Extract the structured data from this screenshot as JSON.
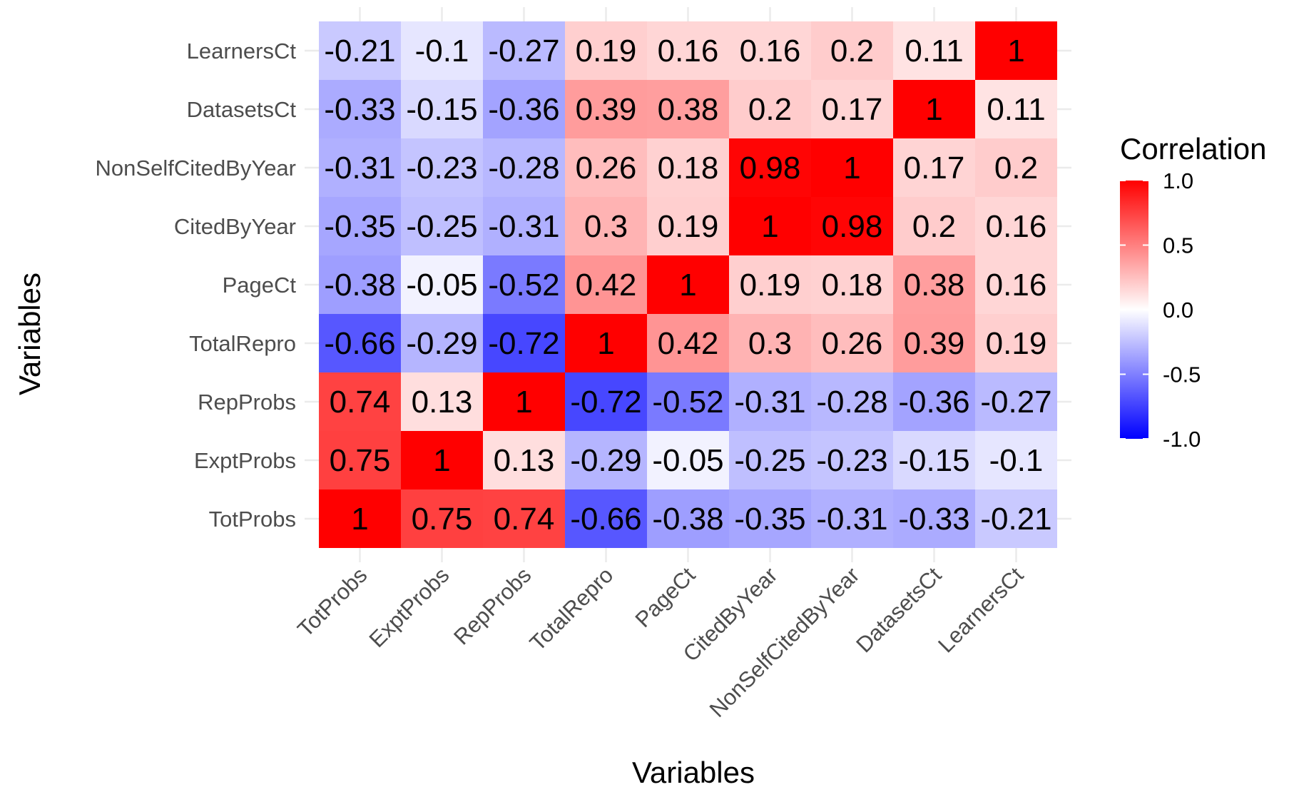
{
  "chart_data": {
    "type": "heatmap",
    "title": "",
    "xlabel": "Variables",
    "ylabel": "Variables",
    "x_categories": [
      "TotProbs",
      "ExptProbs",
      "RepProbs",
      "TotalRepro",
      "PageCt",
      "CitedByYear",
      "NonSelfCitedByYear",
      "DatasetsCt",
      "LearnersCt"
    ],
    "y_categories": [
      "TotProbs",
      "ExptProbs",
      "RepProbs",
      "TotalRepro",
      "PageCt",
      "CitedByYear",
      "NonSelfCitedByYear",
      "DatasetsCt",
      "LearnersCt"
    ],
    "values": [
      [
        1,
        0.75,
        0.74,
        -0.66,
        -0.38,
        -0.35,
        -0.31,
        -0.33,
        -0.21
      ],
      [
        0.75,
        1,
        0.13,
        -0.29,
        -0.05,
        -0.25,
        -0.23,
        -0.15,
        -0.1
      ],
      [
        0.74,
        0.13,
        1,
        -0.72,
        -0.52,
        -0.31,
        -0.28,
        -0.36,
        -0.27
      ],
      [
        -0.66,
        -0.29,
        -0.72,
        1,
        0.42,
        0.3,
        0.26,
        0.39,
        0.19
      ],
      [
        -0.38,
        -0.05,
        -0.52,
        0.42,
        1,
        0.19,
        0.18,
        0.38,
        0.16
      ],
      [
        -0.35,
        -0.25,
        -0.31,
        0.3,
        0.19,
        1,
        0.98,
        0.2,
        0.16
      ],
      [
        -0.31,
        -0.23,
        -0.28,
        0.26,
        0.18,
        0.98,
        1,
        0.17,
        0.2
      ],
      [
        -0.33,
        -0.15,
        -0.36,
        0.39,
        0.38,
        0.2,
        0.17,
        1,
        0.11
      ],
      [
        -0.21,
        -0.1,
        -0.27,
        0.19,
        0.16,
        0.16,
        0.2,
        0.11,
        1
      ]
    ],
    "cell_labels": [
      [
        "1",
        "0.75",
        "0.74",
        "-0.66",
        "-0.38",
        "-0.35",
        "-0.31",
        "-0.33",
        "-0.21"
      ],
      [
        "0.75",
        "1",
        "0.13",
        "-0.29",
        "-0.05",
        "-0.25",
        "-0.23",
        "-0.15",
        "-0.1"
      ],
      [
        "0.74",
        "0.13",
        "1",
        "-0.72",
        "-0.52",
        "-0.31",
        "-0.28",
        "-0.36",
        "-0.27"
      ],
      [
        "-0.66",
        "-0.29",
        "-0.72",
        "1",
        "0.42",
        "0.3",
        "0.26",
        "0.39",
        "0.19"
      ],
      [
        "-0.38",
        "-0.05",
        "-0.52",
        "0.42",
        "1",
        "0.19",
        "0.18",
        "0.38",
        "0.16"
      ],
      [
        "-0.35",
        "-0.25",
        "-0.31",
        "0.3",
        "0.19",
        "1",
        "0.98",
        "0.2",
        "0.16"
      ],
      [
        "-0.31",
        "-0.23",
        "-0.28",
        "0.26",
        "0.18",
        "0.98",
        "1",
        "0.17",
        "0.2"
      ],
      [
        "-0.33",
        "-0.15",
        "-0.36",
        "0.39",
        "0.38",
        "0.2",
        "0.17",
        "1",
        "0.11"
      ],
      [
        "-0.21",
        "-0.1",
        "-0.27",
        "0.19",
        "0.16",
        "0.16",
        "0.2",
        "0.11",
        "1"
      ]
    ],
    "color_scale": {
      "low": "#0000ff",
      "mid": "#ffffff",
      "high": "#ff0000",
      "limits": [
        -1,
        1
      ]
    },
    "legend": {
      "title": "Correlation",
      "ticks": [
        1.0,
        0.5,
        0.0,
        -0.5,
        -1.0
      ],
      "tick_labels": [
        "1.0",
        "0.5",
        "0.0",
        "-0.5",
        "-1.0"
      ],
      "position": "right"
    },
    "grid": true
  }
}
